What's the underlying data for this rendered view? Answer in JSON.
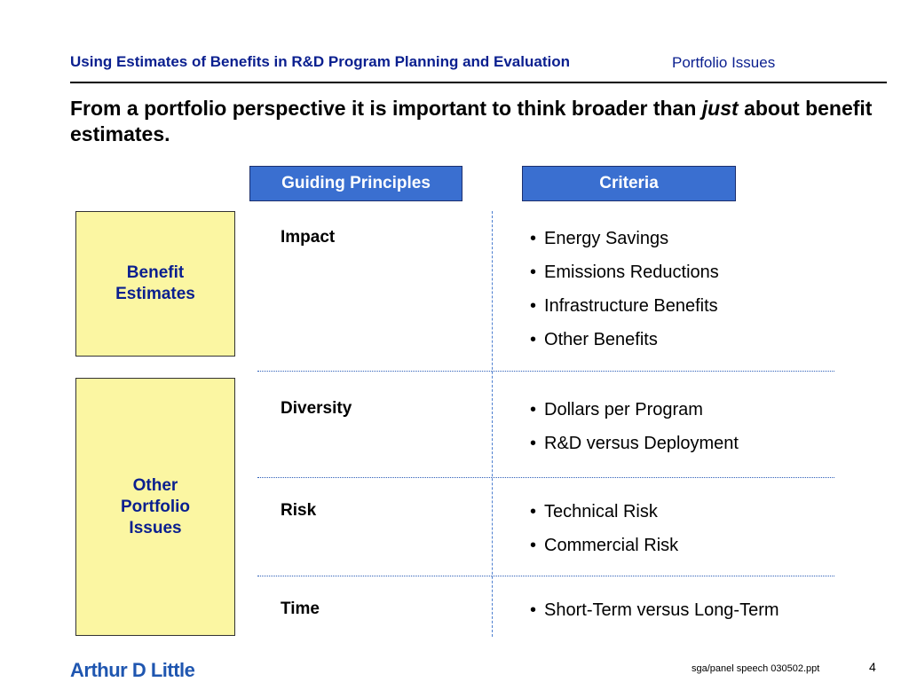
{
  "header": {
    "title": "Using Estimates of Benefits in R&D Program Planning and Evaluation",
    "section": "Portfolio Issues"
  },
  "headline": {
    "before": "From a portfolio perspective it is important to think broader than ",
    "emphasis": "just",
    "after": " about benefit estimates."
  },
  "columns": {
    "principles": "Guiding Principles",
    "criteria": "Criteria"
  },
  "groups": {
    "benefit": "Benefit Estimates",
    "other": "Other Portfolio Issues"
  },
  "rows": [
    {
      "principle": "Impact",
      "criteria": [
        "Energy Savings",
        "Emissions Reductions",
        "Infrastructure Benefits",
        "Other Benefits"
      ]
    },
    {
      "principle": "Diversity",
      "criteria": [
        "Dollars per Program",
        "R&D versus Deployment"
      ]
    },
    {
      "principle": "Risk",
      "criteria": [
        "Technical Risk",
        "Commercial Risk"
      ]
    },
    {
      "principle": "Time",
      "criteria": [
        "Short-Term versus Long-Term"
      ]
    }
  ],
  "footer": {
    "logo": "Arthur D Little",
    "file": "sga/panel speech 030502.ppt",
    "page": "4"
  },
  "colors": {
    "accent_blue": "#3a6fd0",
    "title_navy": "#0a1f8f",
    "box_yellow": "#fbf6a2"
  }
}
